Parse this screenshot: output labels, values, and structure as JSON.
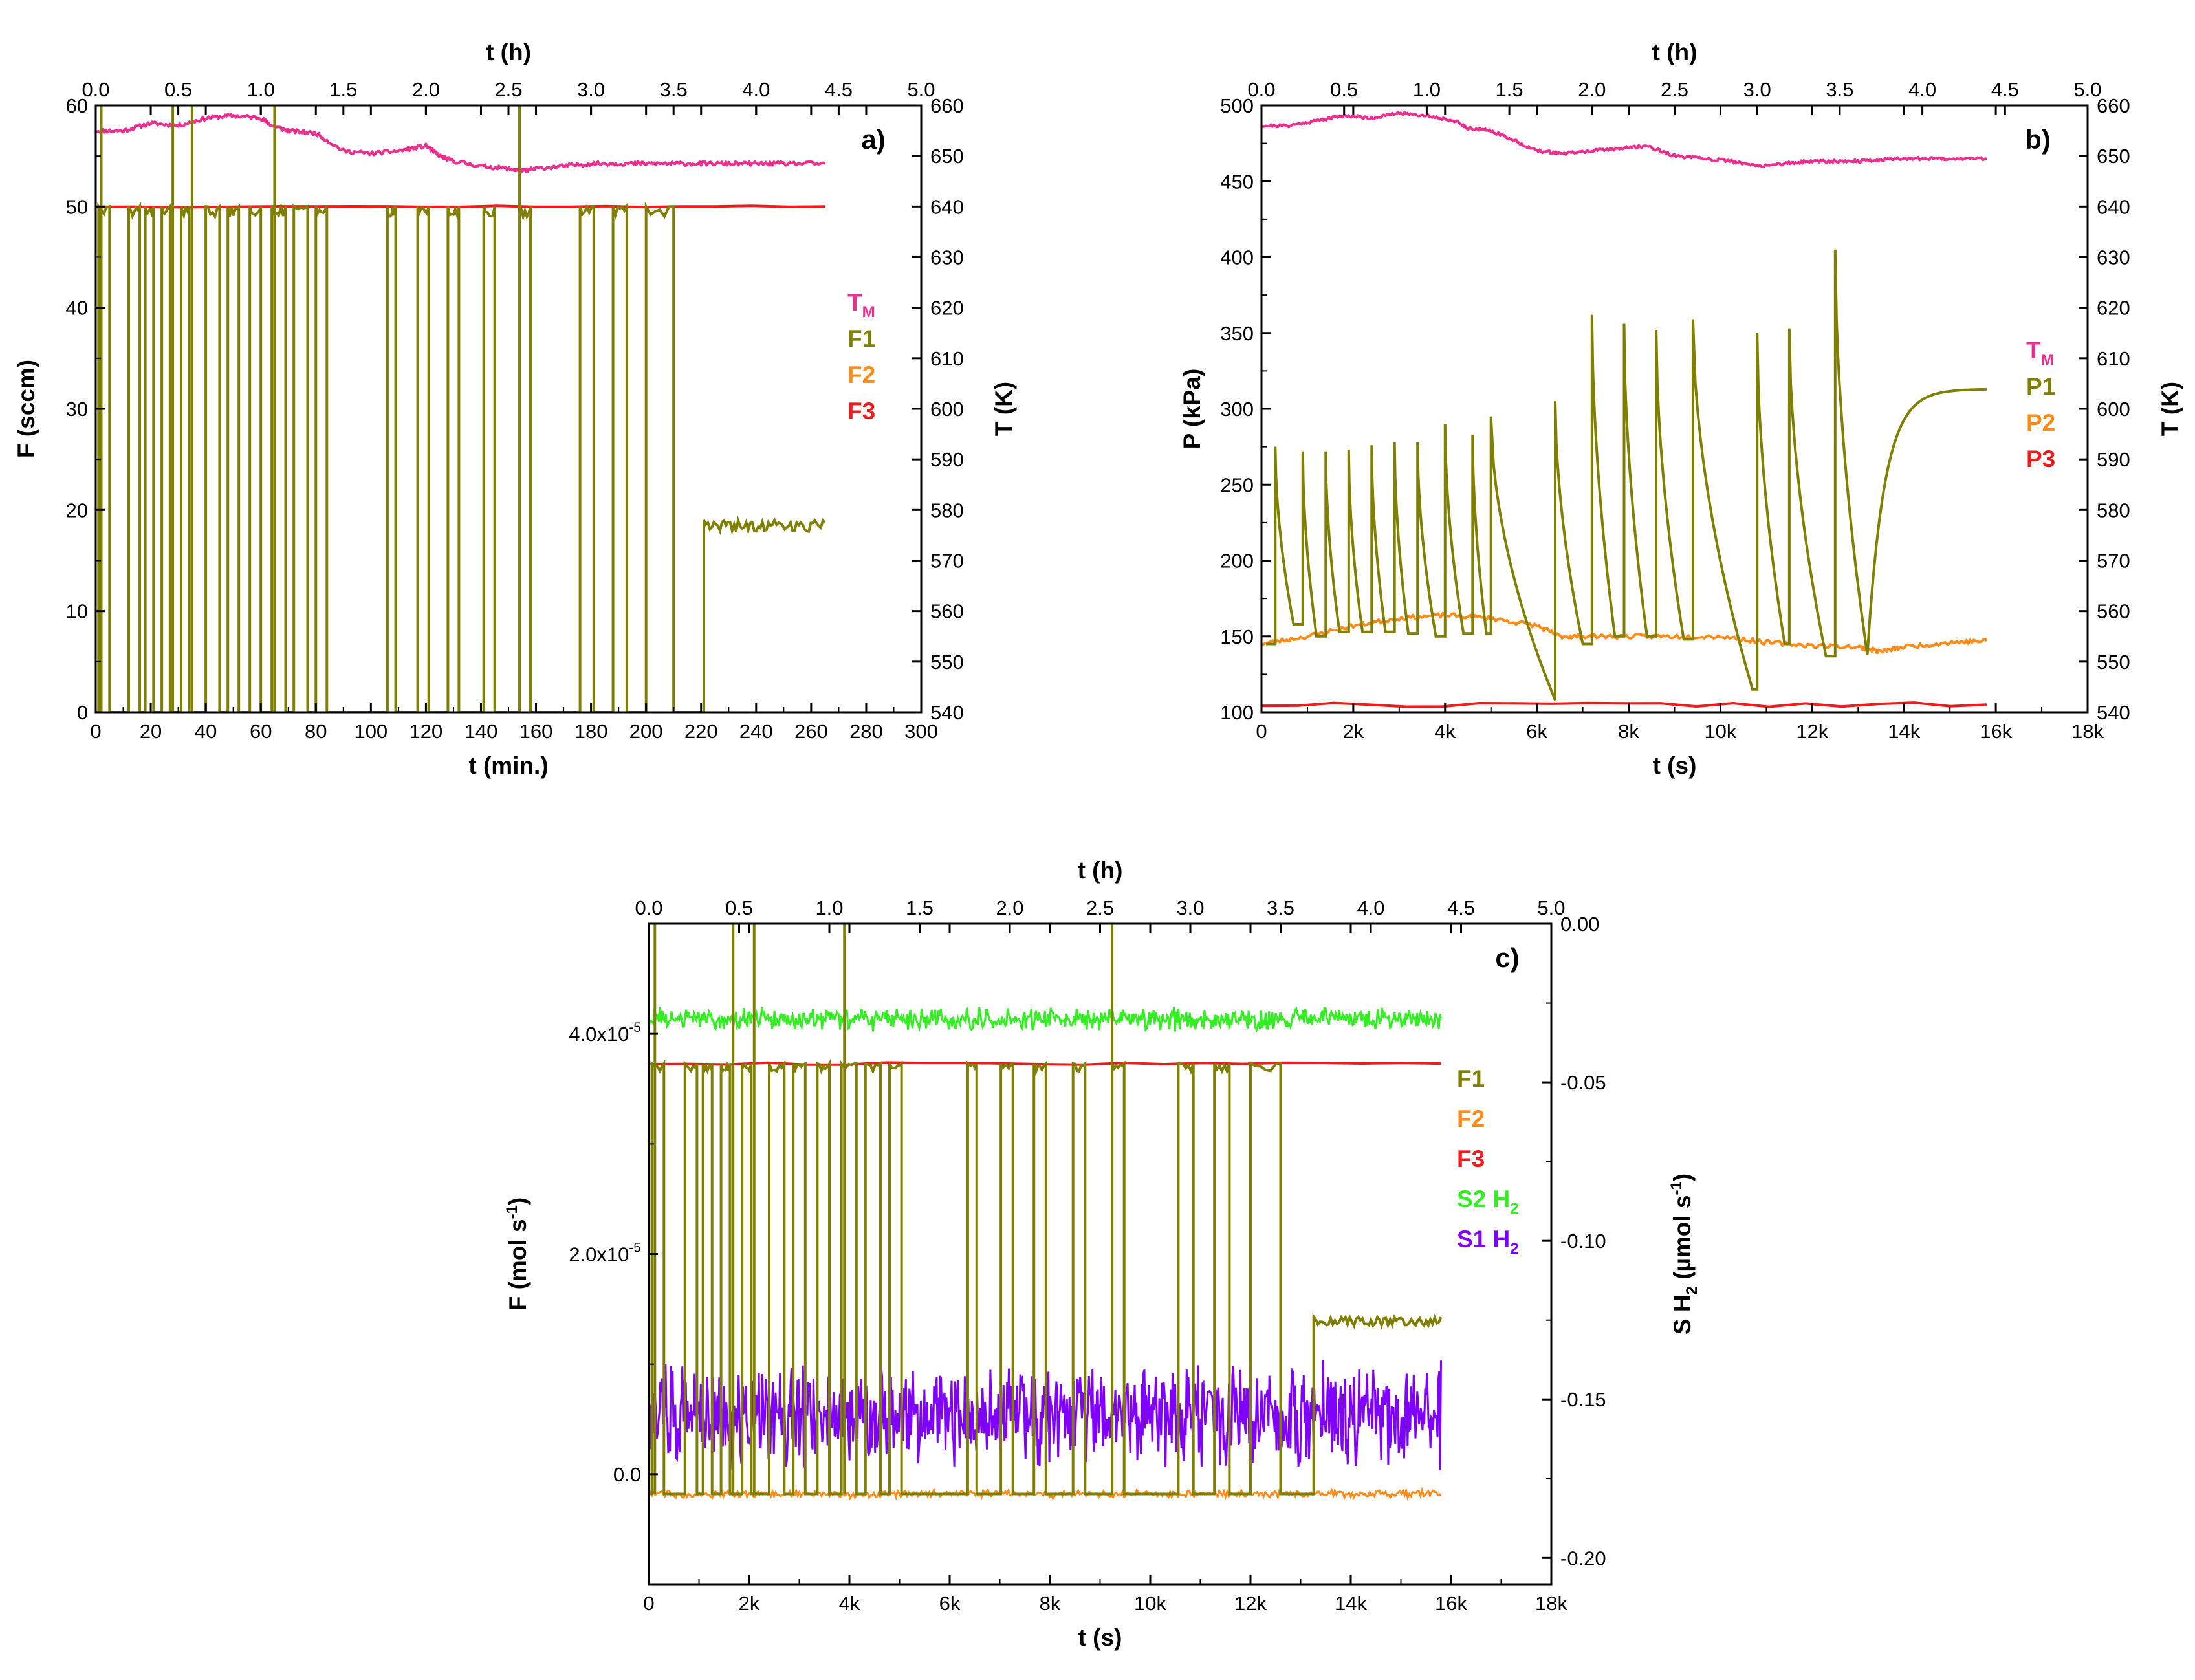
{
  "figure": {
    "panels": [
      "a",
      "b",
      "c"
    ]
  },
  "chart_data": [
    {
      "id": "a",
      "type": "line",
      "panel_label": "a)",
      "xlabel": "t (min.)",
      "x2label": "t (h)",
      "ylabel": "F (sccm)",
      "y2label": "T (K)",
      "xlim": [
        0,
        300
      ],
      "x2lim": [
        0,
        5
      ],
      "ylim": [
        0,
        60
      ],
      "y2lim": [
        540,
        660
      ],
      "xticks": [
        "0",
        "20",
        "40",
        "60",
        "80",
        "100",
        "120",
        "140",
        "160",
        "180",
        "200",
        "220",
        "240",
        "260",
        "280",
        "300"
      ],
      "x2ticks": [
        "0.0",
        "0.5",
        "1.0",
        "1.5",
        "2.0",
        "2.5",
        "3.0",
        "3.5",
        "4.0",
        "4.5",
        "5.0"
      ],
      "yticks": [
        "0",
        "10",
        "20",
        "30",
        "40",
        "50",
        "60"
      ],
      "y2ticks": [
        "540",
        "550",
        "560",
        "570",
        "580",
        "590",
        "600",
        "610",
        "620",
        "630",
        "640",
        "650",
        "660"
      ],
      "grid": false,
      "legend_position": "right",
      "legend": [
        {
          "label": "T",
          "sub": "M",
          "color": "#ec2f8f"
        },
        {
          "label": "F1",
          "sub": "",
          "color": "#808000"
        },
        {
          "label": "F2",
          "sub": "",
          "color": "#ff8c1a"
        },
        {
          "label": "F3",
          "sub": "",
          "color": "#ee1c1c"
        }
      ],
      "series": [
        {
          "name": "TM",
          "axis": "right",
          "color": "#ec2f8f",
          "x": [
            0,
            10,
            20,
            30,
            40,
            50,
            60,
            64,
            70,
            80,
            90,
            100,
            110,
            120,
            125,
            130,
            140,
            150,
            155,
            160,
            170,
            180,
            190,
            200,
            210,
            220,
            230,
            240,
            250,
            265
          ],
          "y": [
            655,
            655,
            656.5,
            656,
            657.5,
            658,
            657.5,
            656,
            655,
            654.5,
            651,
            650.5,
            651,
            652,
            650,
            649,
            648,
            647.5,
            647,
            647.5,
            648,
            648.5,
            648.5,
            648.5,
            648.5,
            648.5,
            648.5,
            648.5,
            648.5,
            648.5
          ]
        },
        {
          "name": "F3",
          "axis": "left",
          "color": "#ee1c1c",
          "x": [
            0,
            265
          ],
          "y": [
            50,
            50
          ]
        },
        {
          "name": "F1",
          "axis": "left",
          "color": "#808000",
          "pulses": [
            [
              1,
              5
            ],
            [
              12,
              16
            ],
            [
              18,
              21
            ],
            [
              24,
              27
            ],
            [
              31,
              34
            ],
            [
              40,
              45
            ],
            [
              48,
              52
            ],
            [
              56,
              60
            ],
            [
              64,
              69
            ],
            [
              72,
              77
            ],
            [
              80,
              84
            ],
            [
              106,
              109
            ],
            [
              117,
              121
            ],
            [
              128,
              132
            ],
            [
              141,
              145
            ],
            [
              154,
              158
            ],
            [
              176,
              181
            ],
            [
              188,
              193
            ],
            [
              200,
              210
            ]
          ],
          "pulse_level": 50,
          "spikes": [
            2,
            28,
            35,
            65,
            154
          ],
          "spike_level": 60,
          "plateau": {
            "from": 221,
            "to": 265,
            "level": 19
          }
        }
      ]
    },
    {
      "id": "b",
      "type": "line",
      "panel_label": "b)",
      "xlabel": "t (s)",
      "x2label": "t (h)",
      "ylabel": "P (kPa)",
      "y2label": "T (K)",
      "xlim": [
        0,
        18000
      ],
      "x2lim": [
        0,
        5
      ],
      "ylim": [
        100,
        500
      ],
      "y2lim": [
        540,
        660
      ],
      "xticks": [
        "0",
        "2k",
        "4k",
        "6k",
        "8k",
        "10k",
        "12k",
        "14k",
        "16k",
        "18k"
      ],
      "x2ticks": [
        "0.0",
        "0.5",
        "1.0",
        "1.5",
        "2.0",
        "2.5",
        "3.0",
        "3.5",
        "4.0",
        "4.5",
        "5.0"
      ],
      "yticks": [
        "100",
        "150",
        "200",
        "250",
        "300",
        "350",
        "400",
        "450",
        "500"
      ],
      "y2ticks": [
        "540",
        "550",
        "560",
        "570",
        "580",
        "590",
        "600",
        "610",
        "620",
        "630",
        "640",
        "650",
        "660"
      ],
      "grid": false,
      "legend_position": "right",
      "legend": [
        {
          "label": "T",
          "sub": "M",
          "color": "#ec2f8f"
        },
        {
          "label": "P1",
          "sub": "",
          "color": "#808000"
        },
        {
          "label": "P2",
          "sub": "",
          "color": "#ff8c1a"
        },
        {
          "label": "P3",
          "sub": "",
          "color": "#ee1c1c"
        }
      ],
      "series": [
        {
          "name": "TM",
          "axis": "right",
          "color": "#ec2f8f",
          "x": [
            0,
            600,
            1200,
            1800,
            2400,
            3000,
            3600,
            4200,
            4500,
            5000,
            5400,
            6000,
            6600,
            7200,
            7800,
            8400,
            9000,
            9600,
            10200,
            10800,
            11400,
            12000,
            12600,
            13200,
            13800,
            14400,
            15000,
            15800
          ],
          "y": [
            656,
            656,
            657,
            658,
            657.5,
            658.5,
            658,
            657,
            655.5,
            655,
            653.5,
            651,
            650.5,
            651,
            651.5,
            652,
            650,
            649.5,
            649,
            648,
            648.5,
            649,
            649,
            649,
            649.5,
            649.5,
            649.5,
            649.5
          ]
        },
        {
          "name": "P3",
          "axis": "left",
          "color": "#ee1c1c",
          "x": [
            0,
            15800
          ],
          "y": [
            105,
            105
          ]
        },
        {
          "name": "P2",
          "axis": "left",
          "color": "#ff8c1a",
          "x": [
            0,
            1000,
            2000,
            3000,
            4000,
            5000,
            6000,
            6500,
            7000,
            8000,
            9000,
            10000,
            11000,
            12000,
            13000,
            13500,
            14000,
            15000,
            15800
          ],
          "y": [
            145,
            150,
            157,
            162,
            164,
            162,
            157,
            150,
            150,
            150,
            150,
            150,
            146,
            144,
            143,
            140,
            143,
            146,
            147
          ]
        },
        {
          "name": "P1",
          "axis": "left",
          "color": "#808000",
          "peaks": [
            [
              300,
              275
            ],
            [
              900,
              272
            ],
            [
              1400,
              272
            ],
            [
              1900,
              273
            ],
            [
              2400,
              276
            ],
            [
              2900,
              278
            ],
            [
              3400,
              278
            ],
            [
              4000,
              290
            ],
            [
              4600,
              283
            ],
            [
              5000,
              295
            ],
            [
              6400,
              305
            ],
            [
              7200,
              362
            ],
            [
              7900,
              356
            ],
            [
              8600,
              352
            ],
            [
              9400,
              359
            ],
            [
              10800,
              350
            ],
            [
              11500,
              353
            ],
            [
              12500,
              405
            ]
          ],
          "troughs": [
            [
              100,
              145
            ],
            [
              700,
              158
            ],
            [
              1200,
              150
            ],
            [
              1700,
              153
            ],
            [
              2200,
              153
            ],
            [
              2700,
              153
            ],
            [
              3200,
              152
            ],
            [
              3800,
              150
            ],
            [
              4400,
              152
            ],
            [
              4900,
              152
            ],
            [
              6400,
              108
            ],
            [
              7000,
              145
            ],
            [
              7700,
              150
            ],
            [
              8400,
              150
            ],
            [
              9200,
              148
            ],
            [
              10700,
              115
            ],
            [
              11400,
              145
            ],
            [
              12300,
              137
            ],
            [
              13200,
              138
            ]
          ],
          "final_rise": {
            "from": 13200,
            "to": 15800,
            "level": 313
          }
        }
      ]
    },
    {
      "id": "c",
      "type": "line",
      "panel_label": "c)",
      "xlabel": "t (s)",
      "x2label": "t (h)",
      "ylabel": "F (mol s-1)",
      "y2label": "S H2 (µmol s-1)",
      "xlim": [
        0,
        18000
      ],
      "x2lim": [
        0,
        5
      ],
      "ylim": [
        -1e-05,
        5e-05
      ],
      "y2lim": [
        -0.2083,
        0.0
      ],
      "xticks": [
        "0",
        "2k",
        "4k",
        "6k",
        "8k",
        "10k",
        "12k",
        "14k",
        "16k",
        "18k"
      ],
      "x2ticks": [
        "0.0",
        "0.5",
        "1.0",
        "1.5",
        "2.0",
        "2.5",
        "3.0",
        "3.5",
        "4.0",
        "4.5",
        "5.0"
      ],
      "yticks": [
        {
          "value": 0.0,
          "base": "0.0",
          "exp": ""
        },
        {
          "value": 2e-05,
          "base": "2.0x10",
          "exp": "-5"
        },
        {
          "value": 4e-05,
          "base": "4.0x10",
          "exp": "-5"
        }
      ],
      "y2ticks": [
        "0.00",
        "-0.05",
        "-0.10",
        "-0.15",
        "-0.20"
      ],
      "grid": false,
      "legend_position": "right",
      "legend": [
        {
          "label": "F1",
          "sub": "",
          "color": "#808000"
        },
        {
          "label": "F2",
          "sub": "",
          "color": "#ff8c1a"
        },
        {
          "label": "F3",
          "sub": "",
          "color": "#ee1c1c"
        },
        {
          "label": "S2 H",
          "sub": "2",
          "color": "#33ee22"
        },
        {
          "label": "S1 H",
          "sub": "2",
          "color": "#8000ff"
        }
      ],
      "series": [
        {
          "name": "S1 H2",
          "axis": "right",
          "color": "#8000ff",
          "noise": {
            "center": -0.155,
            "amplitude": 0.018,
            "to": 15800
          }
        },
        {
          "name": "S2 H2",
          "axis": "right",
          "color": "#33ee22",
          "noise": {
            "center": -0.03,
            "amplitude": 0.004,
            "to": 15800
          }
        },
        {
          "name": "F3",
          "axis": "left",
          "color": "#ee1c1c",
          "x": [
            0,
            15800
          ],
          "y": [
            3.73e-05,
            3.73e-05
          ]
        },
        {
          "name": "F2",
          "axis": "left",
          "color": "#ff8c1a",
          "noise": {
            "center": -1.8e-06,
            "amplitude": 4e-07,
            "to": 15800
          }
        },
        {
          "name": "F1",
          "axis": "left",
          "color": "#808000",
          "pulses": [
            [
              60,
              300
            ],
            [
              720,
              960
            ],
            [
              1080,
              1260
            ],
            [
              1440,
              1620
            ],
            [
              1860,
              2040
            ],
            [
              2400,
              2700
            ],
            [
              2880,
              3120
            ],
            [
              3360,
              3600
            ],
            [
              3840,
              4140
            ],
            [
              4320,
              4620
            ],
            [
              4800,
              5040
            ],
            [
              6360,
              6540
            ],
            [
              7020,
              7260
            ],
            [
              7680,
              7920
            ],
            [
              8460,
              8700
            ],
            [
              9240,
              9480
            ],
            [
              10560,
              10860
            ],
            [
              11280,
              11580
            ],
            [
              12000,
              12600
            ]
          ],
          "pulse_level": 3.73e-05,
          "spikes": [
            120,
            1680,
            2100,
            3900,
            9240
          ],
          "spike_level": 5e-05,
          "base_level": -1.8e-06,
          "plateau": {
            "from": 13260,
            "to": 15800,
            "level": 1.43e-05
          }
        }
      ]
    }
  ]
}
